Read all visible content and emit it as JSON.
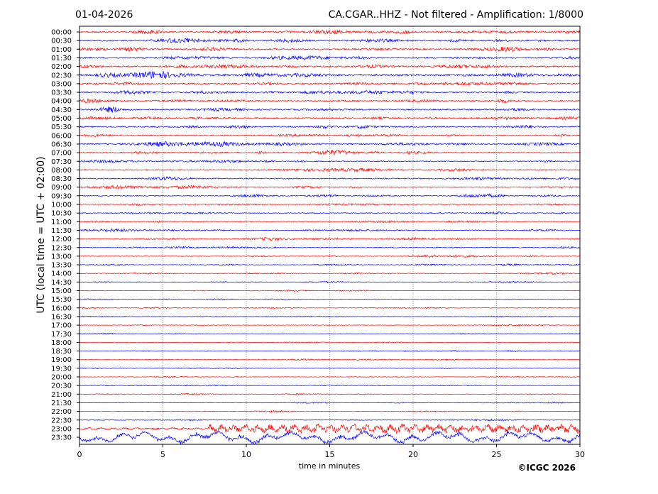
{
  "header": {
    "date": "01-04-2026",
    "station_info": "CA.CGAR..HHZ - Not filtered - Amplification: 1/8000"
  },
  "footer": {
    "copyright": "©ICGC 2026"
  },
  "chart_data": {
    "type": "line",
    "subtype": "helicorder",
    "xlabel": "time in minutes",
    "ylabel": "UTC (local time = UTC + 02:00)",
    "xlim": [
      0,
      30
    ],
    "x_ticks": [
      0,
      5,
      10,
      15,
      20,
      25,
      30
    ],
    "grid": "vertical dotted lines every 5 minutes",
    "trace_colors": [
      "#ff0000",
      "#0000ff"
    ],
    "trace_labels": [
      "00:00",
      "00:30",
      "01:00",
      "01:30",
      "02:00",
      "02:30",
      "03:00",
      "03:30",
      "04:00",
      "04:30",
      "05:00",
      "05:30",
      "06:00",
      "06:30",
      "07:00",
      "07:30",
      "08:00",
      "08:30",
      "09:00",
      "09:30",
      "10:00",
      "10:30",
      "11:00",
      "11:30",
      "12:00",
      "12:30",
      "13:00",
      "13:30",
      "14:00",
      "14:30",
      "15:00",
      "15:30",
      "16:00",
      "16:30",
      "17:00",
      "17:30",
      "18:00",
      "18:30",
      "19:00",
      "19:30",
      "20:00",
      "20:30",
      "21:00",
      "21:30",
      "22:00",
      "22:30",
      "23:00",
      "23:30"
    ],
    "relative_amplitude": [
      0.9,
      1.0,
      1.0,
      0.9,
      1.0,
      1.2,
      1.0,
      0.9,
      0.85,
      0.9,
      1.0,
      0.85,
      0.8,
      0.85,
      0.8,
      0.7,
      0.75,
      0.7,
      0.6,
      0.6,
      0.55,
      0.5,
      0.5,
      0.55,
      0.6,
      0.45,
      0.45,
      0.4,
      0.4,
      0.35,
      0.3,
      0.3,
      0.3,
      0.3,
      0.3,
      0.3,
      0.3,
      0.3,
      0.3,
      0.3,
      0.3,
      0.3,
      0.3,
      0.3,
      0.3,
      0.3,
      2.2,
      3.2
    ]
  }
}
